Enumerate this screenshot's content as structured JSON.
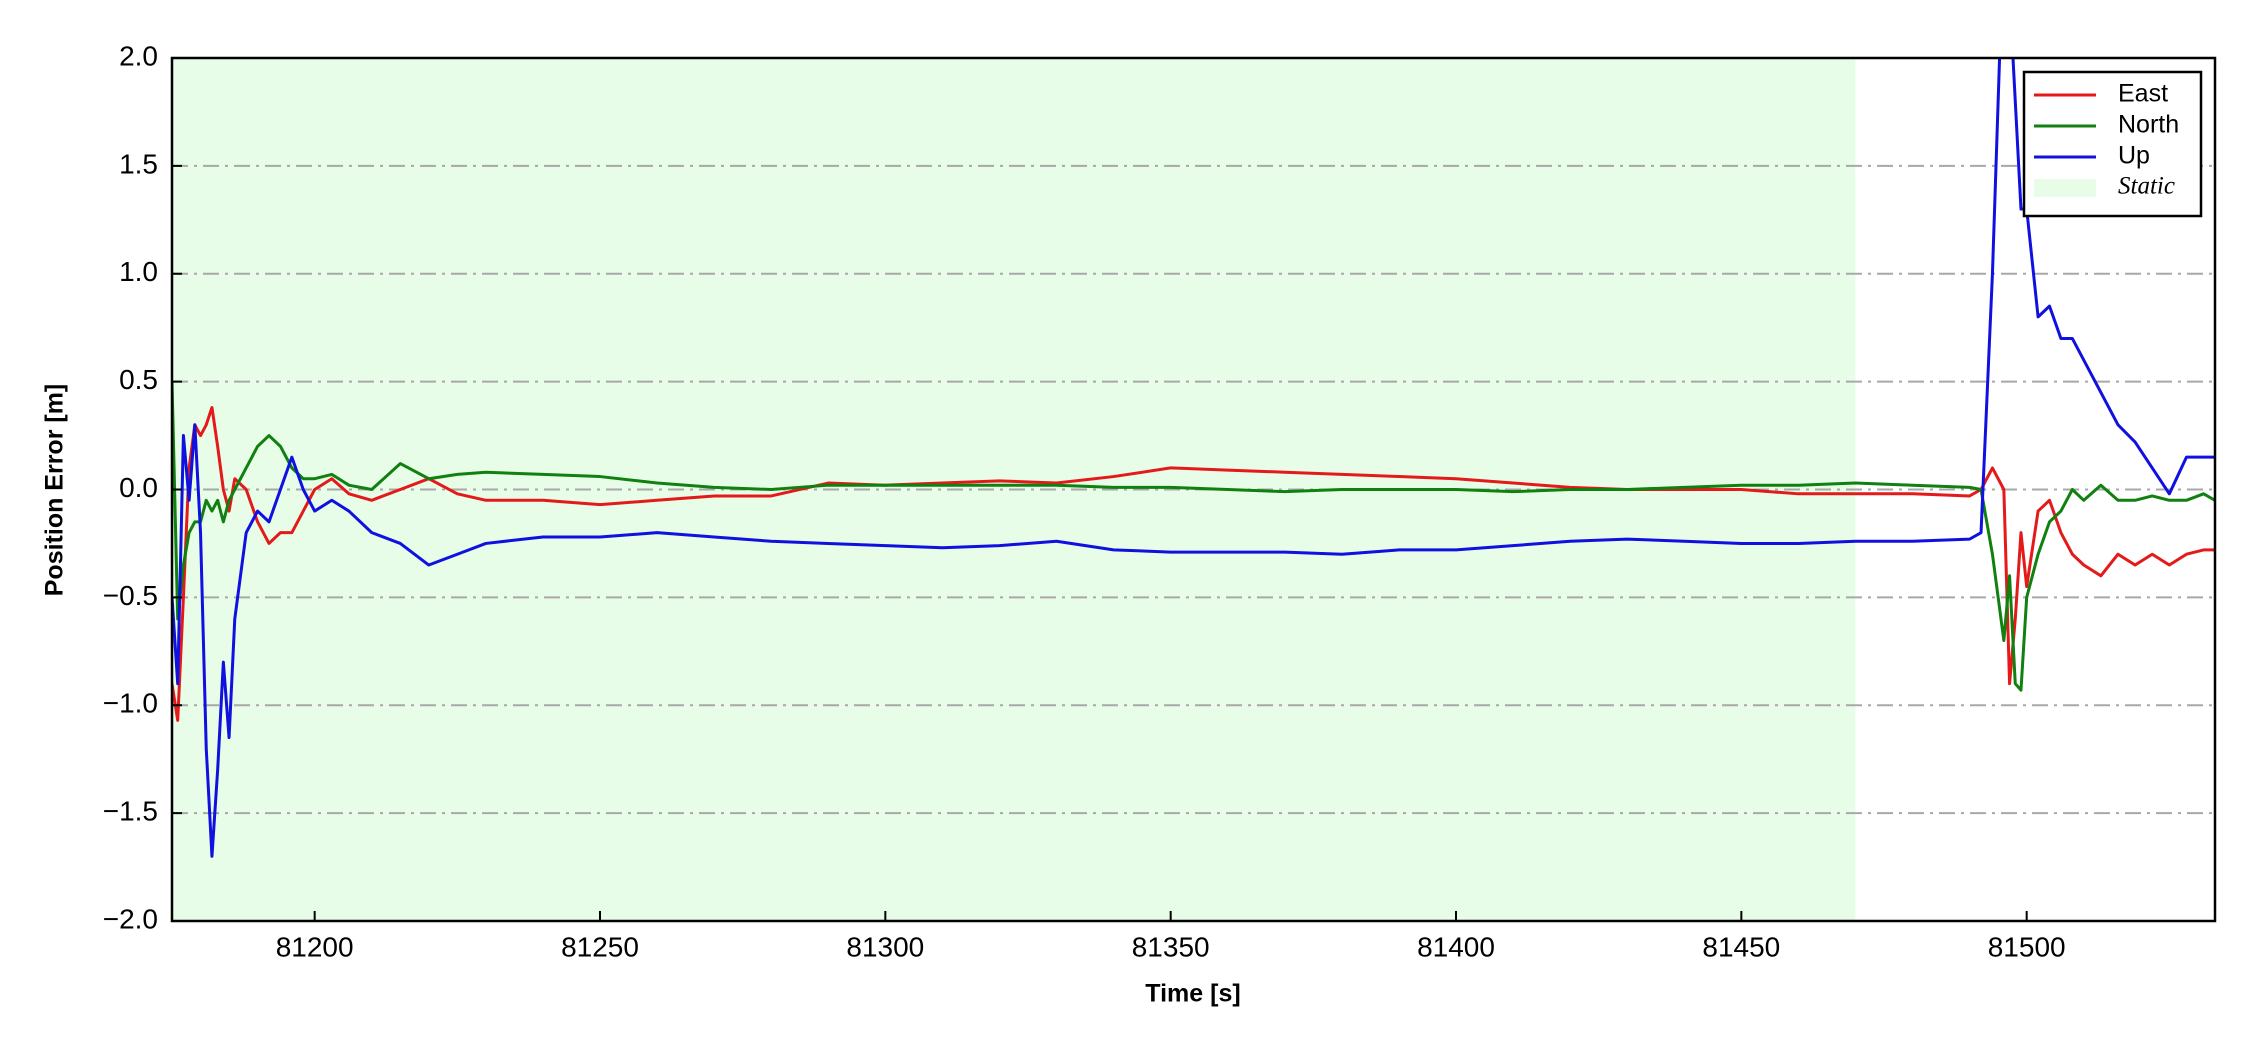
{
  "chart_data": {
    "type": "line",
    "xlabel": "Time [s]",
    "ylabel": "Position Error [m]",
    "xlim": [
      81175,
      81533
    ],
    "ylim": [
      -2,
      2
    ],
    "xticks": [
      81200,
      81250,
      81300,
      81350,
      81400,
      81450,
      81500
    ],
    "yticks": [
      {
        "value": -2,
        "label": "−2.0"
      },
      {
        "value": -1.5,
        "label": "−1.5"
      },
      {
        "value": -1,
        "label": "−1.0"
      },
      {
        "value": -0.5,
        "label": "−0.5"
      },
      {
        "value": 0,
        "label": "0.0"
      },
      {
        "value": 0.5,
        "label": "0.5"
      },
      {
        "value": 1,
        "label": "1.0"
      },
      {
        "value": 1.5,
        "label": "1.5"
      },
      {
        "value": 2,
        "label": "2.0"
      }
    ],
    "grid": true,
    "legend": "upper right",
    "span": {
      "name": "Static",
      "start": 81175,
      "end": 81470,
      "color": "#e8fde8"
    },
    "x": [
      81175,
      81176,
      81177,
      81178,
      81179,
      81180,
      81181,
      81182,
      81183,
      81184,
      81185,
      81186,
      81188,
      81190,
      81192,
      81194,
      81196,
      81198,
      81200,
      81203,
      81206,
      81210,
      81215,
      81220,
      81225,
      81230,
      81240,
      81250,
      81260,
      81270,
      81280,
      81290,
      81300,
      81310,
      81320,
      81330,
      81340,
      81350,
      81360,
      81370,
      81380,
      81390,
      81400,
      81410,
      81420,
      81430,
      81440,
      81450,
      81460,
      81470,
      81480,
      81490,
      81492,
      81494,
      81496,
      81497,
      81498,
      81499,
      81500,
      81502,
      81504,
      81506,
      81508,
      81510,
      81513,
      81516,
      81519,
      81522,
      81525,
      81528,
      81531,
      81533
    ],
    "series": [
      {
        "name": "East",
        "color": "#e41a1a",
        "values": [
          -0.9,
          -1.07,
          -0.5,
          0.1,
          0.3,
          0.25,
          0.3,
          0.38,
          0.2,
          0.0,
          -0.1,
          0.05,
          0.0,
          -0.15,
          -0.25,
          -0.2,
          -0.2,
          -0.1,
          0.0,
          0.05,
          -0.02,
          -0.05,
          0.0,
          0.05,
          -0.02,
          -0.05,
          -0.05,
          -0.07,
          -0.05,
          -0.03,
          -0.03,
          0.03,
          0.02,
          0.03,
          0.04,
          0.03,
          0.06,
          0.1,
          0.09,
          0.08,
          0.07,
          0.06,
          0.05,
          0.03,
          0.01,
          0.0,
          0.0,
          0.0,
          -0.02,
          -0.02,
          -0.02,
          -0.03,
          0.0,
          0.1,
          0.0,
          -0.9,
          -0.6,
          -0.2,
          -0.45,
          -0.1,
          -0.05,
          -0.2,
          -0.3,
          -0.35,
          -0.4,
          -0.3,
          -0.35,
          -0.3,
          -0.35,
          -0.3,
          -0.28,
          -0.28
        ]
      },
      {
        "name": "North",
        "color": "#108010",
        "values": [
          0.5,
          -0.6,
          -0.35,
          -0.2,
          -0.15,
          -0.15,
          -0.05,
          -0.1,
          -0.05,
          -0.15,
          -0.05,
          0.0,
          0.1,
          0.2,
          0.25,
          0.2,
          0.1,
          0.05,
          0.05,
          0.07,
          0.02,
          0.0,
          0.12,
          0.05,
          0.07,
          0.08,
          0.07,
          0.06,
          0.03,
          0.01,
          0.0,
          0.02,
          0.02,
          0.02,
          0.02,
          0.02,
          0.01,
          0.01,
          0.0,
          -0.01,
          0.0,
          0.0,
          0.0,
          -0.01,
          0.0,
          0.0,
          0.01,
          0.02,
          0.02,
          0.03,
          0.02,
          0.01,
          0.0,
          -0.3,
          -0.7,
          -0.4,
          -0.9,
          -0.93,
          -0.5,
          -0.3,
          -0.15,
          -0.1,
          0.0,
          -0.05,
          0.02,
          -0.05,
          -0.05,
          -0.03,
          -0.05,
          -0.05,
          -0.02,
          -0.05
        ]
      },
      {
        "name": "Up",
        "color": "#1010e0",
        "values": [
          -0.5,
          -0.9,
          0.25,
          -0.05,
          0.3,
          -0.2,
          -1.2,
          -1.7,
          -1.3,
          -0.8,
          -1.15,
          -0.6,
          -0.2,
          -0.1,
          -0.15,
          0.0,
          0.15,
          0.0,
          -0.1,
          -0.05,
          -0.1,
          -0.2,
          -0.25,
          -0.35,
          -0.3,
          -0.25,
          -0.22,
          -0.22,
          -0.2,
          -0.22,
          -0.24,
          -0.25,
          -0.26,
          -0.27,
          -0.26,
          -0.24,
          -0.28,
          -0.29,
          -0.29,
          -0.29,
          -0.3,
          -0.28,
          -0.28,
          -0.26,
          -0.24,
          -0.23,
          -0.24,
          -0.25,
          -0.25,
          -0.24,
          -0.24,
          -0.23,
          -0.2,
          1.0,
          2.6,
          2.3,
          1.8,
          1.3,
          1.3,
          0.8,
          0.85,
          0.7,
          0.7,
          0.6,
          0.45,
          0.3,
          0.22,
          0.1,
          -0.02,
          0.15,
          0.15,
          0.15
        ]
      }
    ]
  }
}
